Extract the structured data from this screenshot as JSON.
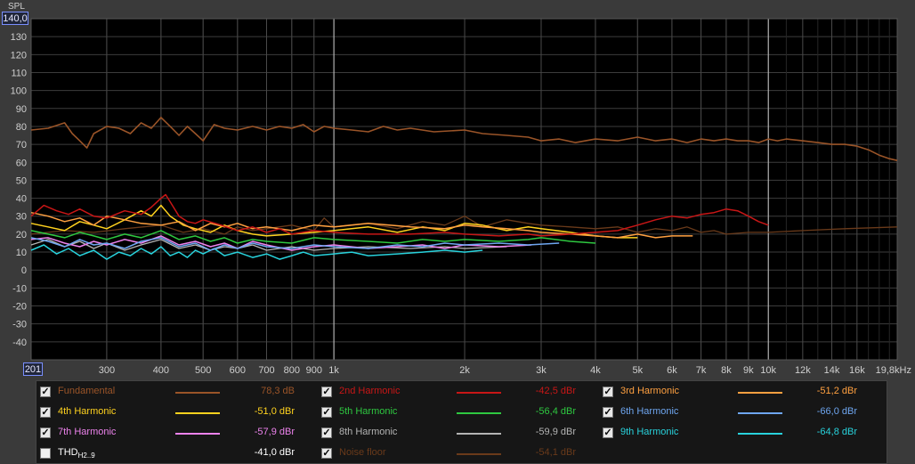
{
  "chart_data": {
    "type": "line",
    "ylabel": "SPL",
    "ylim": [
      -50,
      140
    ],
    "ylim_top_label": "140,0",
    "xlim": [
      201,
      19800
    ],
    "xlim_left_label": "201",
    "x_scale": "log",
    "grid": true,
    "y_ticks": [
      "130",
      "120",
      "110",
      "100",
      "90",
      "80",
      "70",
      "60",
      "50",
      "40",
      "30",
      "20",
      "10",
      "0",
      "-10",
      "-20",
      "-30",
      "-40"
    ],
    "x_ticks": [
      {
        "value": 300,
        "label": "300",
        "major": false
      },
      {
        "value": 400,
        "label": "400",
        "major": false
      },
      {
        "value": 500,
        "label": "500",
        "major": false
      },
      {
        "value": 600,
        "label": "600",
        "major": false
      },
      {
        "value": 700,
        "label": "700",
        "major": false
      },
      {
        "value": 800,
        "label": "800",
        "major": false
      },
      {
        "value": 900,
        "label": "900",
        "major": false
      },
      {
        "value": 1000,
        "label": "1k",
        "major": true
      },
      {
        "value": 2000,
        "label": "2k",
        "major": false
      },
      {
        "value": 3000,
        "label": "3k",
        "major": false
      },
      {
        "value": 4000,
        "label": "4k",
        "major": false
      },
      {
        "value": 5000,
        "label": "5k",
        "major": false
      },
      {
        "value": 6000,
        "label": "6k",
        "major": false
      },
      {
        "value": 7000,
        "label": "7k",
        "major": false
      },
      {
        "value": 8000,
        "label": "8k",
        "major": false
      },
      {
        "value": 9000,
        "label": "9k",
        "major": false
      },
      {
        "value": 10000,
        "label": "10k",
        "major": true
      },
      {
        "value": 12000,
        "label": "12k",
        "major": false
      },
      {
        "value": 14000,
        "label": "14k",
        "major": false
      },
      {
        "value": 16000,
        "label": "16k",
        "major": false
      },
      {
        "value": 19800,
        "label": "19,8kHz",
        "major": false
      }
    ],
    "series": [
      {
        "name": "Fundamental",
        "color": "#9a5428",
        "width": 1.6,
        "x": [
          201,
          220,
          240,
          250,
          260,
          270,
          280,
          300,
          320,
          340,
          360,
          380,
          400,
          420,
          440,
          460,
          480,
          500,
          530,
          560,
          600,
          650,
          700,
          750,
          800,
          850,
          900,
          950,
          1000,
          1100,
          1200,
          1300,
          1400,
          1500,
          1700,
          2000,
          2200,
          2500,
          2800,
          3000,
          3300,
          3600,
          4000,
          4500,
          5000,
          5500,
          6000,
          6500,
          7000,
          7500,
          8000,
          8500,
          9000,
          9500,
          10000,
          10500,
          11000,
          12000,
          13000,
          14000,
          15000,
          16000,
          17000,
          18000,
          19000,
          19800
        ],
        "y": [
          78,
          79,
          82,
          76,
          72,
          68,
          76,
          80,
          79,
          76,
          82,
          79,
          85,
          80,
          75,
          80,
          76,
          72,
          81,
          79,
          78,
          80,
          78,
          80,
          79,
          81,
          77,
          80,
          79,
          78,
          77,
          80,
          78,
          79,
          77,
          78,
          76,
          75,
          74,
          72,
          73,
          71,
          73,
          72,
          74,
          72,
          73,
          71,
          73,
          72,
          73,
          72,
          72,
          71,
          73,
          72,
          73,
          72,
          71,
          70,
          70,
          69,
          67,
          64,
          62,
          61
        ]
      },
      {
        "name": "2nd Harmonic",
        "color": "#c81616",
        "width": 1.5,
        "x": [
          201,
          215,
          230,
          245,
          260,
          280,
          300,
          330,
          360,
          380,
          400,
          410,
          420,
          440,
          460,
          480,
          500,
          550,
          600,
          650,
          700,
          750,
          800,
          900,
          1000,
          1200,
          1500,
          1800,
          2000,
          2400,
          2800,
          3000,
          3500,
          4000,
          4500,
          5000,
          5500,
          6000,
          6500,
          7000,
          7500,
          8000,
          8500,
          9000,
          9500,
          10000
        ],
        "y": [
          30,
          36,
          33,
          31,
          34,
          30,
          29,
          33,
          31,
          35,
          40,
          42,
          38,
          30,
          27,
          26,
          28,
          25,
          22,
          24,
          21,
          23,
          20,
          22,
          21,
          20,
          20,
          21,
          20,
          19,
          20,
          19,
          20,
          21,
          22,
          25,
          28,
          30,
          29,
          31,
          32,
          34,
          33,
          30,
          27,
          25
        ]
      },
      {
        "name": "3rd Harmonic",
        "color": "#ffa040",
        "width": 1.5,
        "x": [
          201,
          220,
          240,
          260,
          280,
          300,
          330,
          360,
          400,
          440,
          480,
          520,
          560,
          600,
          650,
          700,
          800,
          900,
          1000,
          1200,
          1500,
          1800,
          2000,
          2200,
          2500,
          2800,
          3000,
          3500,
          4000,
          4500,
          5000,
          5500,
          6000,
          6700
        ],
        "y": [
          32,
          30,
          27,
          29,
          25,
          30,
          28,
          26,
          25,
          27,
          22,
          26,
          24,
          26,
          23,
          24,
          22,
          25,
          24,
          26,
          24,
          23,
          25,
          24,
          23,
          22,
          21,
          20,
          19,
          18,
          20,
          18,
          19,
          19
        ]
      },
      {
        "name": "4th Harmonic",
        "color": "#ffd21e",
        "width": 1.5,
        "x": [
          201,
          220,
          240,
          260,
          280,
          300,
          330,
          360,
          380,
          400,
          420,
          450,
          480,
          520,
          560,
          600,
          650,
          700,
          800,
          900,
          1000,
          1200,
          1400,
          1600,
          1800,
          2000,
          2200,
          2500,
          2800,
          3000,
          3500,
          4000,
          4500,
          5000
        ],
        "y": [
          26,
          24,
          22,
          27,
          25,
          23,
          28,
          33,
          30,
          36,
          30,
          25,
          23,
          21,
          25,
          22,
          20,
          19,
          20,
          21,
          22,
          24,
          21,
          24,
          22,
          26,
          25,
          22,
          24,
          23,
          21,
          19,
          18,
          18
        ]
      },
      {
        "name": "5th Harmonic",
        "color": "#2ec840",
        "width": 1.5,
        "x": [
          201,
          220,
          240,
          260,
          280,
          300,
          330,
          360,
          400,
          440,
          480,
          520,
          560,
          600,
          650,
          700,
          800,
          900,
          1000,
          1200,
          1400,
          1600,
          1800,
          2000,
          2400,
          2800,
          3000,
          3500,
          4000
        ],
        "y": [
          22,
          20,
          18,
          21,
          19,
          17,
          20,
          18,
          22,
          17,
          19,
          16,
          18,
          15,
          17,
          16,
          15,
          18,
          17,
          16,
          15,
          17,
          16,
          17,
          16,
          17,
          18,
          16,
          15
        ]
      },
      {
        "name": "6th Harmonic",
        "color": "#6ea6f0",
        "width": 1.5,
        "x": [
          201,
          220,
          240,
          260,
          280,
          300,
          330,
          360,
          400,
          440,
          480,
          520,
          560,
          600,
          650,
          700,
          800,
          900,
          1000,
          1200,
          1400,
          1600,
          1800,
          2000,
          2400,
          2800,
          3300
        ],
        "y": [
          18,
          16,
          13,
          17,
          14,
          15,
          12,
          16,
          18,
          13,
          15,
          11,
          14,
          12,
          15,
          13,
          12,
          14,
          13,
          12,
          14,
          13,
          15,
          14,
          15,
          14,
          15
        ]
      },
      {
        "name": "7th Harmonic",
        "color": "#ec82ec",
        "width": 1.5,
        "x": [
          201,
          220,
          240,
          260,
          280,
          300,
          330,
          360,
          400,
          440,
          480,
          520,
          560,
          600,
          650,
          700,
          800,
          900,
          1000,
          1200,
          1400,
          1600,
          1800,
          2000,
          2400,
          2850
        ],
        "y": [
          17,
          18,
          15,
          13,
          16,
          14,
          17,
          15,
          19,
          14,
          16,
          13,
          15,
          12,
          16,
          14,
          11,
          13,
          14,
          12,
          13,
          14,
          12,
          14,
          13,
          14
        ]
      },
      {
        "name": "8th Harmonic",
        "color": "#b4b4b4",
        "width": 1.3,
        "x": [
          201,
          220,
          240,
          260,
          280,
          300,
          330,
          360,
          400,
          440,
          480,
          520,
          560,
          600,
          650,
          700,
          800,
          900,
          1000,
          1200,
          1500,
          1800,
          2000,
          2500
        ],
        "y": [
          14,
          17,
          13,
          16,
          12,
          15,
          11,
          14,
          17,
          12,
          14,
          11,
          13,
          12,
          14,
          11,
          13,
          11,
          12,
          13,
          12,
          13,
          12,
          13
        ]
      },
      {
        "name": "9th Harmonic",
        "color": "#28d2dc",
        "width": 1.5,
        "x": [
          201,
          215,
          230,
          245,
          260,
          280,
          300,
          320,
          340,
          360,
          380,
          400,
          420,
          440,
          460,
          480,
          500,
          530,
          560,
          600,
          650,
          700,
          750,
          800,
          850,
          900,
          1000,
          1100,
          1200,
          1400,
          1600,
          1800,
          2000,
          2200
        ],
        "y": [
          11,
          14,
          9,
          12,
          8,
          11,
          6,
          10,
          8,
          12,
          9,
          13,
          8,
          10,
          7,
          11,
          9,
          12,
          8,
          10,
          7,
          9,
          6,
          8,
          10,
          8,
          9,
          10,
          8,
          9,
          10,
          11,
          10,
          11
        ]
      },
      {
        "name": "Noise floor",
        "color": "#6a3a1a",
        "width": 1.3,
        "x": [
          201,
          240,
          280,
          330,
          400,
          450,
          500,
          560,
          600,
          650,
          700,
          800,
          900,
          950,
          1000,
          1200,
          1400,
          1600,
          1800,
          2000,
          2200,
          2500,
          2800,
          3000,
          3500,
          4000,
          4500,
          5000,
          5500,
          6000,
          6500,
          7000,
          7500,
          8000,
          9000,
          10000,
          12000,
          15000,
          19800
        ],
        "y": [
          20,
          22,
          21,
          23,
          25,
          21,
          23,
          20,
          24,
          22,
          23,
          25,
          22,
          29,
          24,
          26,
          23,
          27,
          25,
          30,
          24,
          28,
          26,
          25,
          24,
          23,
          24,
          21,
          23,
          22,
          24,
          21,
          22,
          20,
          21,
          21,
          22,
          23,
          24
        ]
      }
    ]
  },
  "legend": [
    {
      "name": "Fundamental",
      "value": "78,3 dB",
      "color": "#9a5428",
      "checked": true
    },
    {
      "name": "2nd Harmonic",
      "value": "-42,5 dBr",
      "color": "#c81616",
      "checked": true
    },
    {
      "name": "3rd Harmonic",
      "value": "-51,2 dBr",
      "color": "#ffa040",
      "checked": true
    },
    {
      "name": "4th Harmonic",
      "value": "-51,0 dBr",
      "color": "#ffd21e",
      "checked": true
    },
    {
      "name": "5th Harmonic",
      "value": "-56,4 dBr",
      "color": "#2ec840",
      "checked": true
    },
    {
      "name": "6th Harmonic",
      "value": "-66,0 dBr",
      "color": "#6ea6f0",
      "checked": true
    },
    {
      "name": "7th Harmonic",
      "value": "-57,9 dBr",
      "color": "#ec82ec",
      "checked": true
    },
    {
      "name": "8th Harmonic",
      "value": "-59,9 dBr",
      "color": "#b4b4b4",
      "checked": true
    },
    {
      "name": "9th Harmonic",
      "value": "-64,8 dBr",
      "color": "#28d2dc",
      "checked": true
    },
    {
      "name": "THD",
      "subscript": "H2..9",
      "value": "-41,0 dBr",
      "color": "#ffffff",
      "checked": false
    },
    {
      "name": "Noise floor",
      "value": "-54,1 dBr",
      "color": "#6a3a1a",
      "checked": true
    }
  ]
}
